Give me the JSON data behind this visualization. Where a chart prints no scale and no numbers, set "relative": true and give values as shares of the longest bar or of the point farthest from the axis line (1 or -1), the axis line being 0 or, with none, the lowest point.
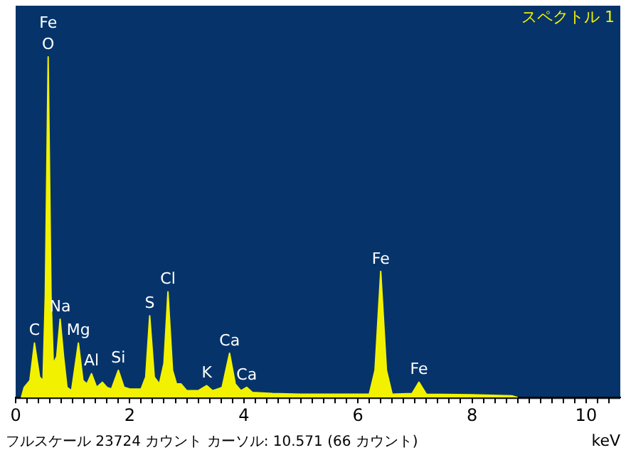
{
  "chart_data": {
    "type": "area",
    "relative": true,
    "xlabel": "keV",
    "xlim": [
      0,
      10.6
    ],
    "xticks": [
      0,
      {
        "value": 0.2,
        "label": null
      },
      {
        "value": 0.4,
        "label": null
      },
      {
        "value": 0.6,
        "label": null
      },
      {
        "value": 0.8,
        "label": null
      },
      {
        "value": 1,
        "label": null
      },
      {
        "value": 1.2,
        "label": null
      },
      {
        "value": 1.4,
        "label": null
      },
      {
        "value": 1.6,
        "label": null
      },
      {
        "value": 1.8,
        "label": null
      },
      2,
      {
        "value": 2.2,
        "label": null
      },
      {
        "value": 2.4,
        "label": null
      },
      {
        "value": 2.6,
        "label": null
      },
      {
        "value": 2.8,
        "label": null
      },
      {
        "value": 3,
        "label": null
      },
      {
        "value": 3.2,
        "label": null
      },
      {
        "value": 3.4,
        "label": null
      },
      {
        "value": 3.6,
        "label": null
      },
      {
        "value": 3.8,
        "label": null
      },
      4,
      {
        "value": 4.2,
        "label": null
      },
      {
        "value": 4.4,
        "label": null
      },
      {
        "value": 4.6,
        "label": null
      },
      {
        "value": 4.8,
        "label": null
      },
      {
        "value": 5,
        "label": null
      },
      {
        "value": 5.2,
        "label": null
      },
      {
        "value": 5.4,
        "label": null
      },
      {
        "value": 5.6,
        "label": null
      },
      {
        "value": 5.8,
        "label": null
      },
      6,
      {
        "value": 6.2,
        "label": null
      },
      {
        "value": 6.4,
        "label": null
      },
      {
        "value": 6.6,
        "label": null
      },
      {
        "value": 6.8,
        "label": null
      },
      {
        "value": 7,
        "label": null
      },
      {
        "value": 7.2,
        "label": null
      },
      {
        "value": 7.4,
        "label": null
      },
      {
        "value": 7.6,
        "label": null
      },
      {
        "value": 7.8,
        "label": null
      },
      8,
      {
        "value": 8.2,
        "label": null
      },
      {
        "value": 8.4,
        "label": null
      },
      {
        "value": 8.6,
        "label": null
      },
      {
        "value": 8.8,
        "label": null
      },
      {
        "value": 9,
        "label": null
      },
      {
        "value": 9.2,
        "label": null
      },
      {
        "value": 9.4,
        "label": null
      },
      {
        "value": 9.6,
        "label": null
      },
      {
        "value": 9.8,
        "label": null
      },
      10,
      {
        "value": 10.2,
        "label": null
      },
      {
        "value": 10.4,
        "label": null
      }
    ],
    "x": [
      0.1,
      0.15,
      0.25,
      0.33,
      0.42,
      0.48,
      0.52,
      0.57,
      0.62,
      0.66,
      0.72,
      0.78,
      0.84,
      0.9,
      0.98,
      1.1,
      1.18,
      1.25,
      1.33,
      1.42,
      1.52,
      1.6,
      1.68,
      1.8,
      1.9,
      2.0,
      2.2,
      2.28,
      2.35,
      2.43,
      2.52,
      2.6,
      2.67,
      2.75,
      2.82,
      2.9,
      3.0,
      3.2,
      3.35,
      3.45,
      3.62,
      3.75,
      3.85,
      3.95,
      4.05,
      4.15,
      4.5,
      5.0,
      5.5,
      6.2,
      6.3,
      6.4,
      6.5,
      6.6,
      6.95,
      7.07,
      7.2,
      8.0,
      8.7,
      8.8
    ],
    "series": [
      {
        "color": "#f2f200",
        "values": [
          0,
          0.03,
          0.05,
          0.16,
          0.06,
          0.05,
          0.3,
          1,
          0.3,
          0.1,
          0.12,
          0.23,
          0.12,
          0.03,
          0.02,
          0.16,
          0.05,
          0.04,
          0.07,
          0.03,
          0.045,
          0.03,
          0.025,
          0.08,
          0.03,
          0.025,
          0.025,
          0.06,
          0.24,
          0.06,
          0.04,
          0.1,
          0.31,
          0.08,
          0.04,
          0.04,
          0.02,
          0.02,
          0.035,
          0.02,
          0.03,
          0.13,
          0.04,
          0.02,
          0.03,
          0.015,
          0.012,
          0.01,
          0.01,
          0.01,
          0.08,
          0.37,
          0.08,
          0.01,
          0.012,
          0.045,
          0.01,
          0.008,
          0.005,
          0
        ]
      }
    ],
    "marker": "none",
    "annotations": [
      "スペクトル 1",
      "フルスケール 23724 カウント カーソル: 10.571 (66 カウント)",
      {
        "text": "O",
        "x": 0.57,
        "y": 1
      },
      {
        "text": "Fe",
        "x": 0.57,
        "y": 1
      },
      {
        "text": "C",
        "x": 0.33,
        "y": 0.16
      },
      {
        "text": "Na",
        "x": 0.78,
        "y": 0.23
      },
      {
        "text": "Mg",
        "x": 1.1,
        "y": 0.16
      },
      {
        "text": "Al",
        "x": 1.33,
        "y": 0.07
      },
      {
        "text": "Si",
        "x": 1.8,
        "y": 0.08
      },
      {
        "text": "S",
        "x": 2.35,
        "y": 0.24
      },
      {
        "text": "Cl",
        "x": 2.67,
        "y": 0.31
      },
      {
        "text": "K",
        "x": 3.35,
        "y": 0.035
      },
      {
        "text": "Ca",
        "x": 3.75,
        "y": 0.13
      },
      {
        "text": "Ca",
        "x": 4.05,
        "y": 0.03
      },
      {
        "text": "Fe",
        "x": 6.4,
        "y": 0.37
      },
      {
        "text": "Fe",
        "x": 7.07,
        "y": 0.045
      }
    ]
  }
}
